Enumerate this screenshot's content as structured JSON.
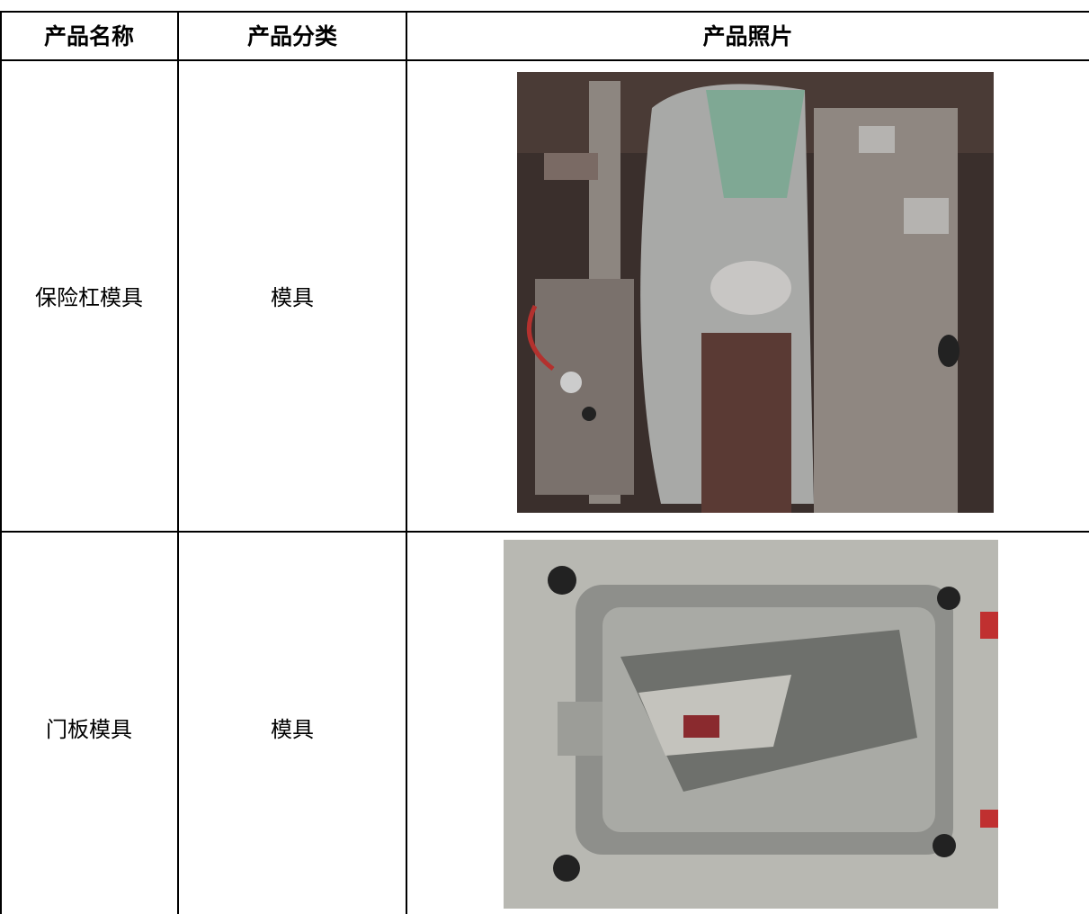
{
  "table": {
    "header": [
      "产品名称",
      "产品分类",
      "产品照片"
    ],
    "rows": [
      [
        "保险杠模具",
        "模具"
      ],
      [
        "门板模具",
        "模具"
      ]
    ]
  }
}
